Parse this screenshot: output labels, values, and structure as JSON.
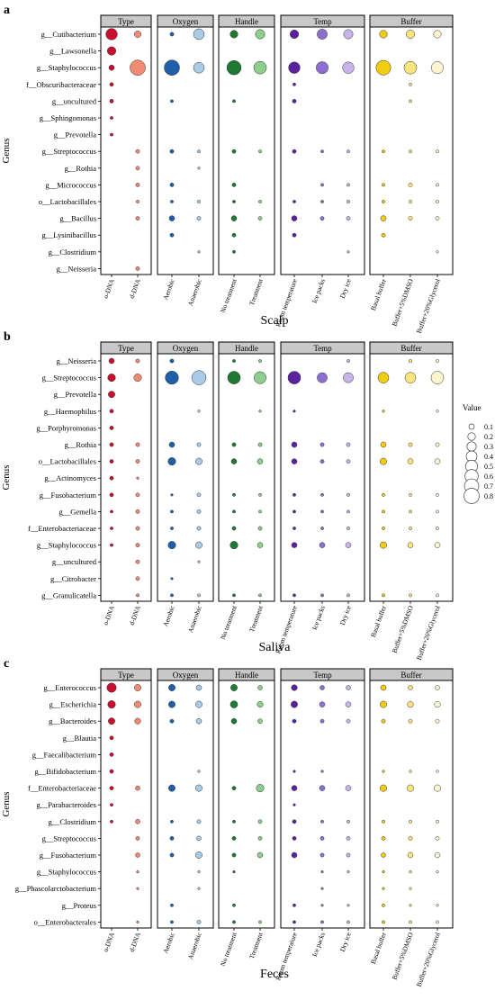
{
  "chart_data": {
    "type": "scatter",
    "encoding": "bubble size = value",
    "facets": [
      "Type",
      "Oxygen",
      "Handle",
      "Temp",
      "Buffer"
    ],
    "columns": [
      [
        "o-DNA",
        "d-DNA"
      ],
      [
        "Aerobic",
        "Anaerobic"
      ],
      [
        "No treatment",
        "Treatment"
      ],
      [
        "Room temperature",
        "Ice packs",
        "Dry ice"
      ],
      [
        "Basal buffer",
        "Buffer+5%DMSO",
        "Buffer+20%Glycerol"
      ]
    ],
    "colors": {
      "o-DNA": "#c8102e",
      "d-DNA": "#f08a72",
      "Aerobic": "#1f5fa8",
      "Anaerobic": "#a9cbe8",
      "No treatment": "#1e7a32",
      "Treatment": "#8ccf8c",
      "Room temperature": "#5b22a0",
      "Ice packs": "#8c6fd0",
      "Dry ice": "#c8b4ea",
      "Basal buffer": "#f2cc12",
      "Buffer+5%DMSO": "#fae47c",
      "Buffer+20%Glycerol": "#fcf5cf"
    },
    "ylabel": "Genus",
    "legend": {
      "title": "Value",
      "placement": "right",
      "values": [
        0.1,
        0.2,
        0.3,
        0.4,
        0.5,
        0.6,
        0.7,
        0.8
      ]
    },
    "panels": [
      {
        "letter": "a",
        "title": "Scalp",
        "genera": [
          "g__Cutibacterium",
          "g__Lawsonella",
          "g__Staphylococcus",
          "f__Obscuribacteraceae",
          "g__uncultured",
          "g__Sphingomonas",
          "g__Prevotella",
          "g__Streptococcus",
          "g__Rothia",
          "g__Micrococcus",
          "o__Lactobacillales",
          "g__Bacillus",
          "g__Lysinibacillus",
          "g__Clostridium",
          "g__Neisseria"
        ],
        "values": [
          [
            0.45,
            0.15,
            0.05,
            0.4,
            0.2,
            0.3,
            0.25,
            0.35,
            0.3,
            0.2,
            0.25,
            0.2
          ],
          [
            0.25,
            0,
            0,
            0,
            0,
            0,
            0,
            0,
            0,
            0,
            0,
            0
          ],
          [
            0.1,
            0.8,
            0.8,
            0.4,
            0.7,
            0.55,
            0.45,
            0.5,
            0.45,
            0.75,
            0.55,
            0.5
          ],
          [
            0.05,
            0,
            0,
            0,
            0,
            0,
            0.03,
            0,
            0,
            0,
            0.03,
            0
          ],
          [
            0.05,
            0,
            0.03,
            0,
            0.03,
            0,
            0.05,
            0,
            0,
            0,
            0.03,
            0
          ],
          [
            0.03,
            0,
            0,
            0,
            0,
            0,
            0,
            0,
            0,
            0,
            0,
            0
          ],
          [
            0.03,
            0,
            0,
            0,
            0,
            0,
            0,
            0,
            0,
            0,
            0,
            0
          ],
          [
            0,
            0.05,
            0.05,
            0.03,
            0.05,
            0.03,
            0.05,
            0.03,
            0.03,
            0.03,
            0.03,
            0.03
          ],
          [
            0,
            0.05,
            0,
            0.02,
            0,
            0,
            0,
            0,
            0,
            0,
            0,
            0
          ],
          [
            0,
            0.05,
            0.05,
            0,
            0.05,
            0,
            0,
            0.03,
            0.03,
            0.03,
            0.05,
            0.03
          ],
          [
            0,
            0.03,
            0.03,
            0.03,
            0.03,
            0.03,
            0.03,
            0.03,
            0.03,
            0.03,
            0.03,
            0.03
          ],
          [
            0,
            0.05,
            0.1,
            0.05,
            0.1,
            0.05,
            0.1,
            0.05,
            0.05,
            0.1,
            0.05,
            0.05
          ],
          [
            0,
            0,
            0.05,
            0,
            0.05,
            0,
            0.05,
            0,
            0,
            0.05,
            0,
            0
          ],
          [
            0,
            0,
            0,
            0.02,
            0.03,
            0,
            0,
            0,
            0.02,
            0,
            0,
            0.02
          ],
          [
            0,
            0.05,
            0,
            0,
            0,
            0,
            0,
            0,
            0,
            0,
            0,
            0
          ]
        ]
      },
      {
        "letter": "b",
        "title": "Saliva",
        "genera": [
          "g__Neisseria",
          "g__Streptococcus",
          "g__Prevotella",
          "g__Haemophilus",
          "g__Porphyromonas",
          "g__Rothia",
          "o__Lactobacillales",
          "g__Actinomyces",
          "g__Fusobacterium",
          "g__Gemella",
          "f__Enterobacteriaceae",
          "g__Staphylococcus",
          "g__uncultured",
          "g__Citrobacter",
          "g__Granulicatella"
        ],
        "values": [
          [
            0.1,
            0.05,
            0.05,
            0,
            0.03,
            0.03,
            0,
            0,
            0.03,
            0,
            0.03,
            0.03
          ],
          [
            0.2,
            0.2,
            0.6,
            0.7,
            0.55,
            0.5,
            0.55,
            0.35,
            0.35,
            0.4,
            0.4,
            0.55
          ],
          [
            0.15,
            0,
            0,
            0,
            0,
            0,
            0,
            0,
            0,
            0,
            0,
            0
          ],
          [
            0.05,
            0,
            0,
            0.02,
            0,
            0.02,
            0.02,
            0,
            0,
            0.02,
            0,
            0.02
          ],
          [
            0.05,
            0,
            0,
            0,
            0,
            0,
            0,
            0,
            0,
            0,
            0,
            0
          ],
          [
            0.05,
            0.05,
            0.1,
            0.05,
            0.05,
            0.05,
            0.1,
            0.05,
            0.05,
            0.1,
            0.05,
            0.05
          ],
          [
            0.05,
            0.05,
            0.2,
            0.15,
            0.1,
            0.1,
            0.1,
            0.05,
            0.05,
            0.15,
            0.1,
            0.1
          ],
          [
            0.05,
            0.02,
            0,
            0,
            0,
            0,
            0,
            0,
            0,
            0,
            0,
            0
          ],
          [
            0.05,
            0.05,
            0.02,
            0.05,
            0.03,
            0.03,
            0.03,
            0.03,
            0.03,
            0.03,
            0.03,
            0.03
          ],
          [
            0.03,
            0.05,
            0.03,
            0.05,
            0.03,
            0.03,
            0.03,
            0.03,
            0.03,
            0.03,
            0.03,
            0.03
          ],
          [
            0.03,
            0.05,
            0.03,
            0.05,
            0.05,
            0.05,
            0.03,
            0.03,
            0.03,
            0.03,
            0.03,
            0.03
          ],
          [
            0.03,
            0.05,
            0.2,
            0.15,
            0.2,
            0.1,
            0.1,
            0.1,
            0.1,
            0.15,
            0.1,
            0.1
          ],
          [
            0,
            0.05,
            0,
            0.02,
            0,
            0,
            0,
            0,
            0,
            0,
            0,
            0
          ],
          [
            0,
            0.05,
            0.02,
            0,
            0,
            0,
            0,
            0,
            0,
            0,
            0,
            0
          ],
          [
            0,
            0.03,
            0.03,
            0.03,
            0.03,
            0.03,
            0.03,
            0.03,
            0.03,
            0.03,
            0.03,
            0.03
          ]
        ]
      },
      {
        "letter": "c",
        "title": "Feces",
        "genera": [
          "g__Enterococcus",
          "g__Escherichia",
          "g__Bacteroides",
          "g__Blautia",
          "g__Faecalibacterium",
          "g__Bifidobacterium",
          "f__Enterobacteriaceae",
          "g__Parabacteroides",
          "g__Clostridium",
          "g__Streptococcus",
          "g__Fusobacterium",
          "g__Staphylococcus",
          "g__Phascolarctobacterium",
          "g__Proteus",
          "o__Enterobacterales"
        ],
        "values": [
          [
            0.3,
            0.15,
            0.15,
            0.1,
            0.15,
            0.07,
            0.12,
            0.07,
            0.07,
            0.1,
            0.07,
            0.07
          ],
          [
            0.2,
            0.15,
            0.15,
            0.15,
            0.18,
            0.12,
            0.15,
            0.1,
            0.1,
            0.15,
            0.12,
            0.12
          ],
          [
            0.15,
            0.12,
            0.05,
            0.1,
            0.1,
            0.07,
            0.05,
            0.05,
            0.05,
            0.05,
            0.05,
            0.05
          ],
          [
            0.05,
            0,
            0,
            0,
            0,
            0,
            0,
            0,
            0,
            0,
            0,
            0
          ],
          [
            0.05,
            0,
            0,
            0,
            0,
            0,
            0,
            0,
            0,
            0,
            0,
            0
          ],
          [
            0.05,
            0,
            0,
            0.02,
            0,
            0,
            0.02,
            0.02,
            0,
            0.02,
            0.02,
            0.02
          ],
          [
            0.05,
            0.07,
            0.15,
            0.15,
            0.05,
            0.2,
            0.1,
            0.1,
            0.1,
            0.15,
            0.15,
            0.15
          ],
          [
            0.03,
            0,
            0,
            0,
            0,
            0,
            0.02,
            0,
            0,
            0,
            0,
            0
          ],
          [
            0.03,
            0.07,
            0.03,
            0.05,
            0.03,
            0.05,
            0.05,
            0.03,
            0.03,
            0.03,
            0.03,
            0.03
          ],
          [
            0,
            0.05,
            0.05,
            0.07,
            0.05,
            0.05,
            0.05,
            0.05,
            0.05,
            0.05,
            0.05,
            0.05
          ],
          [
            0,
            0.07,
            0.05,
            0.15,
            0.05,
            0.1,
            0.1,
            0.05,
            0.05,
            0.07,
            0.1,
            0.1
          ],
          [
            0,
            0.02,
            0,
            0.02,
            0.02,
            0,
            0,
            0.02,
            0.02,
            0.02,
            0.02,
            0.02
          ],
          [
            0,
            0.02,
            0,
            0.02,
            0,
            0,
            0,
            0.02,
            0,
            0.02,
            0.02,
            0
          ],
          [
            0,
            0,
            0.03,
            0,
            0.03,
            0,
            0.03,
            0.02,
            0.02,
            0.03,
            0.02,
            0.02
          ],
          [
            0,
            0.02,
            0.03,
            0.05,
            0.03,
            0.03,
            0.03,
            0.03,
            0.03,
            0.03,
            0.03,
            0.03
          ]
        ]
      }
    ]
  }
}
